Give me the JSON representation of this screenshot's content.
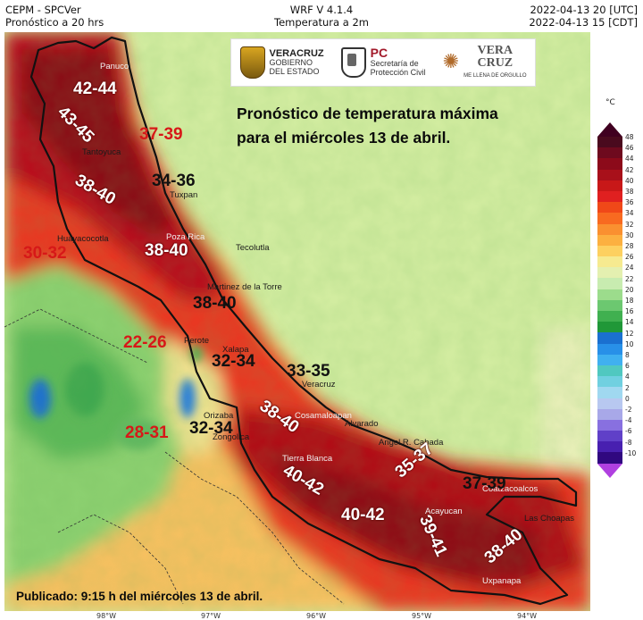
{
  "header": {
    "left_line1": "CEPM - SPCVer",
    "left_line2": "Pronóstico a 20 hrs",
    "mid_line1": "WRF V 4.1.4",
    "mid_line2": "Temperatura a 2m",
    "right_line1": "2022-04-13 20 [UTC]",
    "right_line2": "2022-04-13 15 [CDT]"
  },
  "logos": {
    "veracruz_line1": "VERACRUZ",
    "veracruz_line2": "GOBIERNO",
    "veracruz_line3": "DEL ESTADO",
    "pc_mark": "PC",
    "pc_line1": "Secretaría de",
    "pc_line2": "Protección Civil",
    "vc_line1": "VERA",
    "vc_line2": "CRUZ",
    "vc_tagline": "ME LLENA DE ORGULLO"
  },
  "title_line1": "Pronóstico de temperatura máxima",
  "title_line2": "para el miércoles 13 de abril.",
  "published": "Publicado: 9:15 h del miércoles 13 de abril.",
  "colorbar": {
    "unit": "°C",
    "ticks": [
      "48",
      "46",
      "44",
      "42",
      "40",
      "38",
      "36",
      "34",
      "32",
      "30",
      "28",
      "26",
      "24",
      "22",
      "20",
      "18",
      "16",
      "14",
      "12",
      "10",
      "8",
      "6",
      "4",
      "2",
      "0",
      "-2",
      "-4",
      "-6",
      "-8",
      "-10"
    ],
    "colors": [
      "#4a0a1e",
      "#6e0a1e",
      "#8c0a1a",
      "#a8101a",
      "#c81818",
      "#e02020",
      "#f04818",
      "#f86a20",
      "#fa9030",
      "#fcb040",
      "#fdd060",
      "#f6ea90",
      "#e4f0b0",
      "#c8ecb0",
      "#9cdc8c",
      "#6cc870",
      "#40b050",
      "#209838",
      "#1a70d0",
      "#2890e8",
      "#40b0f0",
      "#50c8c0",
      "#70d0e0",
      "#a0d8f0",
      "#b8c8f0",
      "#a8a8e8",
      "#8870e0",
      "#6040c8",
      "#4820b0",
      "#300880"
    ]
  },
  "region_labels": [
    {
      "text": "42-44",
      "color": "white"
    },
    {
      "text": "43-45",
      "color": "white"
    },
    {
      "text": "37-39",
      "color": "red"
    },
    {
      "text": "34-36",
      "color": "black"
    },
    {
      "text": "38-40",
      "color": "white"
    },
    {
      "text": "30-32",
      "color": "red"
    },
    {
      "text": "38-40",
      "color": "white"
    },
    {
      "text": "38-40",
      "color": "black"
    },
    {
      "text": "22-26",
      "color": "red"
    },
    {
      "text": "32-34",
      "color": "black"
    },
    {
      "text": "33-35",
      "color": "black"
    },
    {
      "text": "38-40",
      "color": "white"
    },
    {
      "text": "28-31",
      "color": "red"
    },
    {
      "text": "32-34",
      "color": "black"
    },
    {
      "text": "40-42",
      "color": "white"
    },
    {
      "text": "35-37",
      "color": "white"
    },
    {
      "text": "37-39",
      "color": "black"
    },
    {
      "text": "40-42",
      "color": "white"
    },
    {
      "text": "39-41",
      "color": "white"
    },
    {
      "text": "38-40",
      "color": "white"
    }
  ],
  "places": [
    "Panuco",
    "Tantoyuca",
    "Tuxpan",
    "Huayacocotla",
    "Poza Rica",
    "Tecolutla",
    "Martinez de la Torre",
    "Perote",
    "Xalapa",
    "Veracruz",
    "Alvarado",
    "Orizaba",
    "Zongolica",
    "Angel R. Cabada",
    "Tierra Blanca",
    "Cosamaloapan",
    "Acayucan",
    "Coatzacoalcos",
    "Las Choapas",
    "Uxpanapa"
  ],
  "lon_ticks": [
    "98°W",
    "97°W",
    "96°W",
    "95°W",
    "94°W"
  ]
}
